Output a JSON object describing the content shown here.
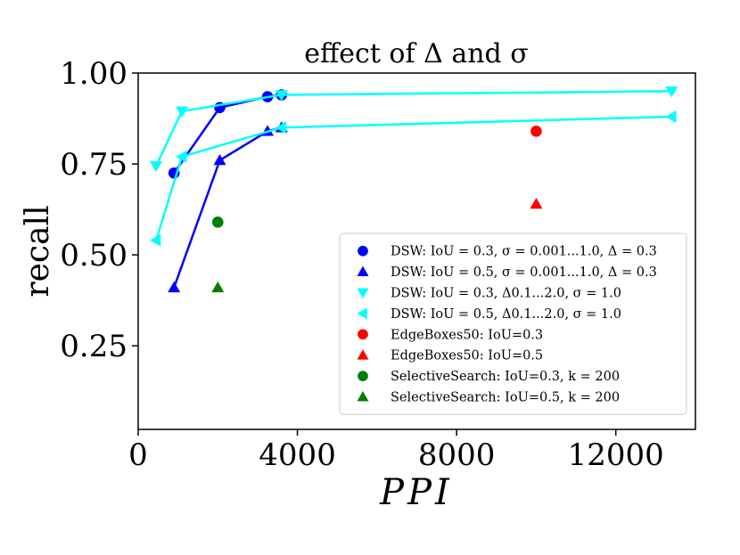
{
  "chart_data": {
    "type": "scatter",
    "title": "effect of Δ and σ",
    "xlabel": "PPI",
    "ylabel": "recall",
    "xlim": [
      0,
      14000
    ],
    "ylim": [
      0.02,
      1.0
    ],
    "x_ticks": [
      0,
      4000,
      8000,
      12000
    ],
    "x_tick_labels": [
      "0",
      "4000",
      "8000",
      "12000"
    ],
    "y_ticks": [
      0.25,
      0.5,
      0.75,
      1.0
    ],
    "y_tick_labels": [
      "0.25",
      "0.50",
      "0.75",
      "1.00"
    ],
    "legend_position": "lower-right",
    "series": [
      {
        "name": "DSW: IoU = 0.3, σ = 0.001...1.0, Δ = 0.3",
        "marker": "circle",
        "color": "#0000ff",
        "line": true,
        "x": [
          900,
          2050,
          3250,
          3600
        ],
        "y": [
          0.725,
          0.905,
          0.935,
          0.94
        ]
      },
      {
        "name": "DSW: IoU = 0.5, σ = 0.001...1.0, Δ = 0.3",
        "marker": "triangle-up",
        "color": "#0000ff",
        "line": true,
        "x": [
          900,
          2050,
          3250,
          3600
        ],
        "y": [
          0.41,
          0.76,
          0.84,
          0.85
        ]
      },
      {
        "name": "DSW: IoU = 0.3, Δ0.1...2.0, σ = 1.0",
        "marker": "triangle-down",
        "color": "#00ffff",
        "line": true,
        "x": [
          450,
          1100,
          3600,
          13400
        ],
        "y": [
          0.745,
          0.895,
          0.94,
          0.95
        ]
      },
      {
        "name": "DSW: IoU = 0.5, Δ0.1...2.0, σ = 1.0",
        "marker": "triangle-left",
        "color": "#00ffff",
        "line": true,
        "x": [
          450,
          1100,
          3600,
          13400
        ],
        "y": [
          0.54,
          0.77,
          0.85,
          0.88
        ]
      },
      {
        "name": "EdgeBoxes50: IoU=0.3",
        "marker": "circle",
        "color": "#ff0000",
        "line": false,
        "x": [
          10000
        ],
        "y": [
          0.84
        ]
      },
      {
        "name": "EdgeBoxes50: IoU=0.5",
        "marker": "triangle-up",
        "color": "#ff0000",
        "line": false,
        "x": [
          10000
        ],
        "y": [
          0.64
        ]
      },
      {
        "name": "SelectiveSearch: IoU=0.3, k = 200",
        "marker": "circle",
        "color": "#008000",
        "line": false,
        "x": [
          2000
        ],
        "y": [
          0.59
        ]
      },
      {
        "name": "SelectiveSearch: IoU=0.5, k = 200",
        "marker": "triangle-up",
        "color": "#008000",
        "line": false,
        "x": [
          2000
        ],
        "y": [
          0.41
        ]
      }
    ]
  }
}
